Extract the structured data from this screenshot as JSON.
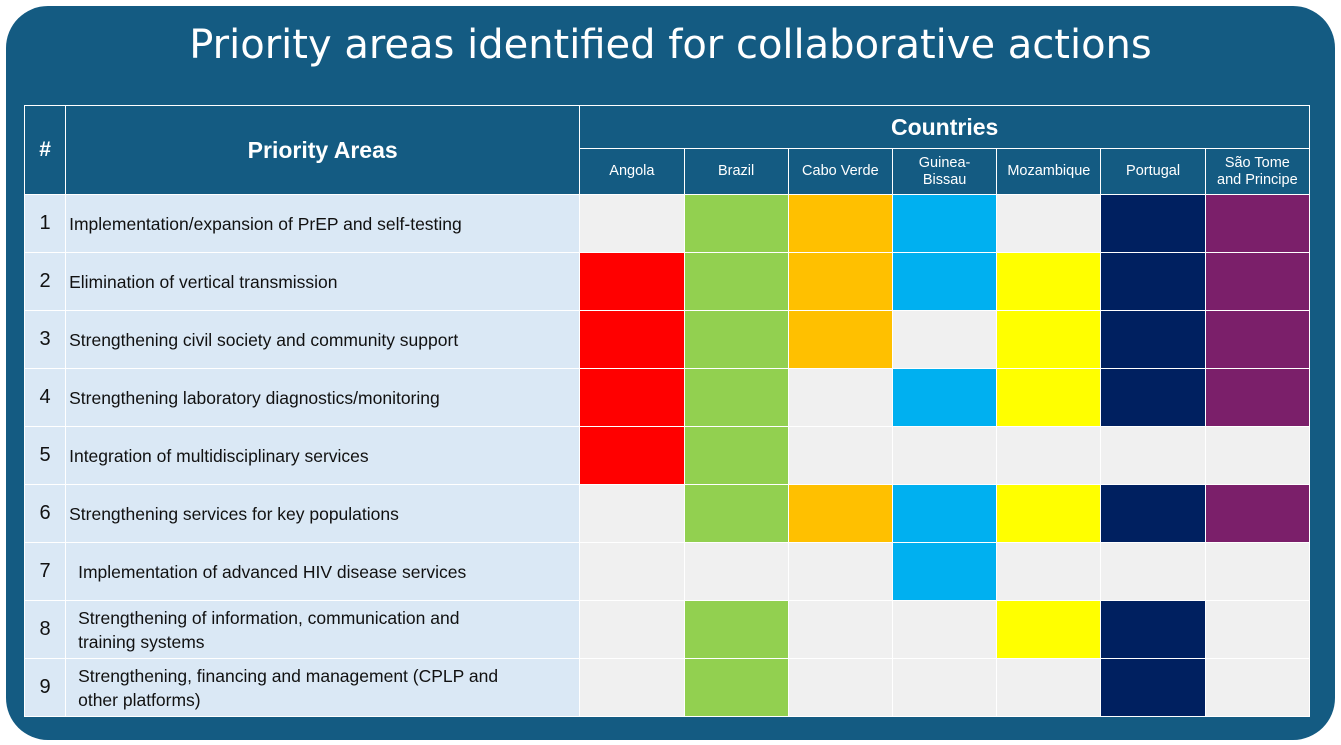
{
  "title": "Priority areas identified for collaborative actions",
  "table": {
    "header_num": "#",
    "header_area": "Priority Areas",
    "header_countries": "Countries",
    "countries": [
      "Angola",
      "Brazil",
      "Cabo Verde",
      "Guinea-\nBissau",
      "Mozambique",
      "Portugal",
      "São Tome\nand Principe"
    ],
    "country_colors": [
      "#ff0000",
      "#92d050",
      "#ffc000",
      "#00b0f0",
      "#ffff00",
      "#002060",
      "#7b1f6a"
    ],
    "empty_color": "#f0f0f0",
    "rows": [
      {
        "num": "1",
        "area": "Implementation/expansion of PrEP and self-testing",
        "marks": [
          0,
          1,
          1,
          1,
          0,
          1,
          1
        ]
      },
      {
        "num": "2",
        "area": "Elimination of vertical transmission",
        "marks": [
          1,
          1,
          1,
          1,
          1,
          1,
          1
        ]
      },
      {
        "num": "3",
        "area": "Strengthening civil society and community support",
        "marks": [
          1,
          1,
          1,
          0,
          1,
          1,
          1
        ]
      },
      {
        "num": "4",
        "area": "Strengthening laboratory diagnostics/monitoring",
        "marks": [
          1,
          1,
          0,
          1,
          1,
          1,
          1
        ]
      },
      {
        "num": "5",
        "area": "Integration of multidisciplinary services",
        "marks": [
          1,
          1,
          0,
          0,
          0,
          0,
          0
        ]
      },
      {
        "num": "6",
        "area": "Strengthening services for key populations",
        "marks": [
          0,
          1,
          1,
          1,
          1,
          1,
          1
        ]
      },
      {
        "num": "7",
        "area": "Implementation of advanced HIV disease services",
        "marks": [
          0,
          0,
          0,
          1,
          0,
          0,
          0
        ]
      },
      {
        "num": "8",
        "area": "Strengthening of information, communication and training systems",
        "marks": [
          0,
          1,
          0,
          0,
          1,
          1,
          0
        ]
      },
      {
        "num": "9",
        "area": "Strengthening, financing and management (CPLP and other platforms)",
        "marks": [
          0,
          1,
          0,
          0,
          0,
          1,
          0
        ]
      }
    ]
  }
}
